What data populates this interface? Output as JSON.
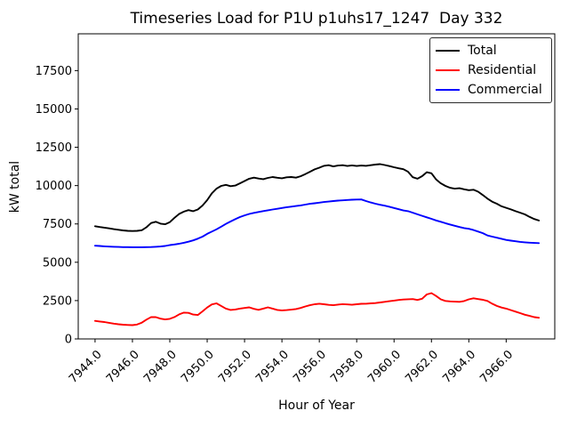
{
  "chart_data": {
    "type": "line",
    "title": "Timeseries Load for P1U p1uhs17_1247  Day 332",
    "xlabel": "Hour of Year",
    "ylabel": "kW total",
    "grid": false,
    "legend_position": "upper right",
    "xlim": [
      7943.1,
      7968.6
    ],
    "ylim": [
      0,
      19900
    ],
    "xtick_values": [
      7944,
      7946,
      7948,
      7950,
      7952,
      7954,
      7956,
      7958,
      7960,
      7962,
      7964,
      7966
    ],
    "xtick_labels": [
      "7944.0",
      "7946.0",
      "7948.0",
      "7950.0",
      "7952.0",
      "7954.0",
      "7956.0",
      "7958.0",
      "7960.0",
      "7962.0",
      "7964.0",
      "7966.0"
    ],
    "ytick_values": [
      0,
      2500,
      5000,
      7500,
      10000,
      12500,
      15000,
      17500
    ],
    "ytick_labels": [
      "0",
      "2500",
      "5000",
      "7500",
      "10000",
      "12500",
      "15000",
      "17500"
    ],
    "x_start": 7944.0,
    "x_step": 0.25,
    "series": [
      {
        "name": "Total",
        "color": "#000000",
        "values": [
          7350,
          7300,
          7260,
          7210,
          7160,
          7120,
          7080,
          7050,
          7040,
          7050,
          7090,
          7280,
          7560,
          7640,
          7520,
          7480,
          7620,
          7900,
          8150,
          8300,
          8400,
          8330,
          8440,
          8700,
          9050,
          9500,
          9800,
          9980,
          10050,
          9960,
          10000,
          10150,
          10300,
          10450,
          10520,
          10460,
          10420,
          10500,
          10560,
          10510,
          10480,
          10540,
          10560,
          10520,
          10610,
          10750,
          10900,
          11060,
          11170,
          11290,
          11330,
          11250,
          11310,
          11330,
          11280,
          11320,
          11280,
          11310,
          11290,
          11330,
          11370,
          11400,
          11340,
          11270,
          11200,
          11130,
          11070,
          10900,
          10550,
          10450,
          10620,
          10870,
          10800,
          10400,
          10150,
          9980,
          9860,
          9800,
          9830,
          9760,
          9700,
          9730,
          9600,
          9380,
          9150,
          8950,
          8820,
          8650,
          8550,
          8450,
          8330,
          8230,
          8120,
          7960,
          7820,
          7720
        ]
      },
      {
        "name": "Residential",
        "color": "#ff0000",
        "values": [
          1180,
          1140,
          1100,
          1050,
          1000,
          960,
          930,
          910,
          900,
          940,
          1060,
          1260,
          1430,
          1420,
          1320,
          1270,
          1310,
          1430,
          1600,
          1720,
          1700,
          1590,
          1560,
          1800,
          2050,
          2250,
          2320,
          2150,
          1980,
          1890,
          1920,
          1980,
          2020,
          2060,
          1960,
          1900,
          1980,
          2060,
          1980,
          1890,
          1860,
          1880,
          1910,
          1950,
          2020,
          2120,
          2200,
          2260,
          2300,
          2260,
          2220,
          2200,
          2240,
          2270,
          2250,
          2230,
          2260,
          2290,
          2300,
          2320,
          2340,
          2380,
          2420,
          2460,
          2500,
          2540,
          2570,
          2590,
          2600,
          2540,
          2620,
          2900,
          2990,
          2800,
          2580,
          2480,
          2450,
          2430,
          2420,
          2470,
          2580,
          2650,
          2600,
          2550,
          2480,
          2300,
          2150,
          2050,
          1980,
          1880,
          1780,
          1680,
          1580,
          1500,
          1420,
          1380
        ]
      },
      {
        "name": "Commercial",
        "color": "#0000ff",
        "values": [
          6080,
          6060,
          6040,
          6020,
          6010,
          6000,
          5990,
          5985,
          5980,
          5980,
          5980,
          5985,
          5995,
          6010,
          6030,
          6060,
          6120,
          6160,
          6210,
          6270,
          6340,
          6430,
          6540,
          6670,
          6850,
          7000,
          7150,
          7320,
          7500,
          7660,
          7810,
          7950,
          8060,
          8150,
          8220,
          8280,
          8340,
          8390,
          8440,
          8490,
          8540,
          8590,
          8630,
          8670,
          8710,
          8760,
          8810,
          8850,
          8890,
          8930,
          8960,
          8990,
          9020,
          9040,
          9060,
          9080,
          9090,
          9100,
          8990,
          8900,
          8820,
          8750,
          8690,
          8620,
          8540,
          8460,
          8380,
          8330,
          8230,
          8130,
          8030,
          7930,
          7830,
          7730,
          7640,
          7550,
          7460,
          7380,
          7300,
          7230,
          7180,
          7100,
          7000,
          6900,
          6750,
          6670,
          6600,
          6530,
          6460,
          6410,
          6370,
          6330,
          6300,
          6280,
          6260,
          6250
        ]
      }
    ]
  }
}
